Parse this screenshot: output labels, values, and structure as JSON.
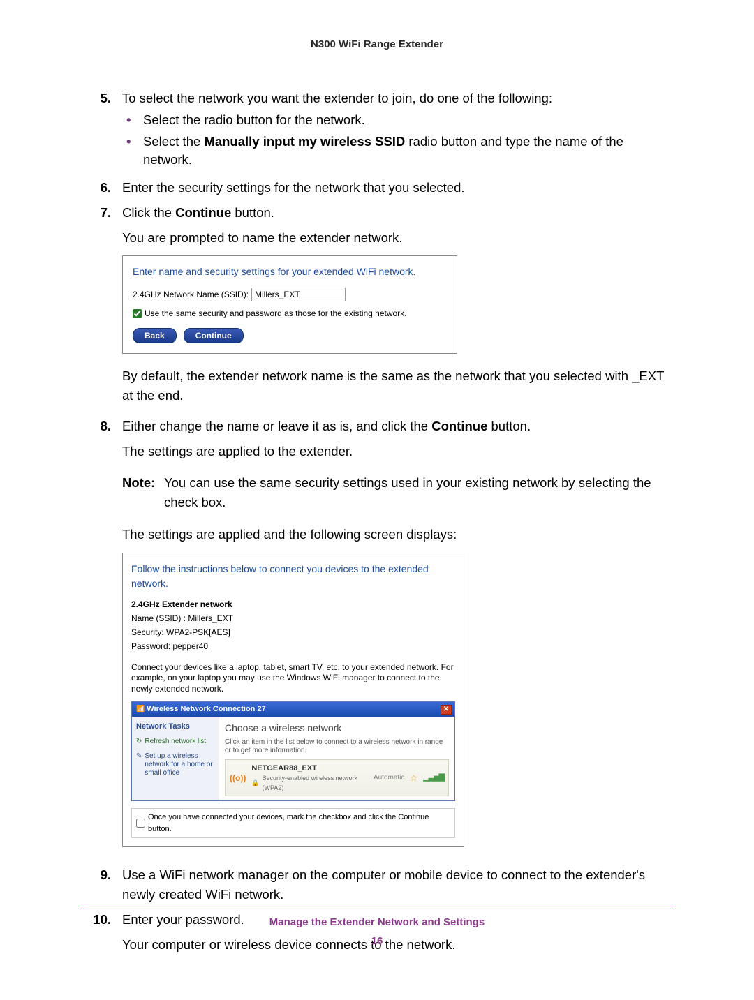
{
  "doc": {
    "header_title": "N300 WiFi Range Extender",
    "footer_section": "Manage the Extender Network and Settings",
    "page_number": "16"
  },
  "colors": {
    "accent_purple": "#8a3a8a",
    "link_blue": "#1a4aa0",
    "xp_bar": "#2a5ac0"
  },
  "steps": {
    "s5": {
      "num": "5.",
      "text": "To select the network you want the extender to join, do one of the following:",
      "b1": "Select the radio button for the network.",
      "b2_a": "Select the ",
      "b2_bold": "Manually input my wireless SSID",
      "b2_b": " radio button and type the name of the network."
    },
    "s6": {
      "num": "6.",
      "text": "Enter the security settings for the network that you selected."
    },
    "s7": {
      "num": "7.",
      "a": "Click the ",
      "bold": "Continue",
      "b": " button.",
      "p2": "You are prompted to name the extender network.",
      "p3": "By default, the extender network name is the same as the network that you selected with _EXT at the end."
    },
    "s8": {
      "num": "8.",
      "a": "Either change the name or leave it as is, and click the ",
      "bold": "Continue",
      "b": " button.",
      "p2": "The settings are applied to the extender.",
      "note_label": "Note:",
      "note_text": "You can use the same security settings used in your existing network by selecting the check box.",
      "p3": "The settings are applied and the following screen displays:"
    },
    "s9": {
      "num": "9.",
      "text": "Use a WiFi network manager on the computer or mobile device to connect to the extender's newly created WiFi network."
    },
    "s10": {
      "num": "10.",
      "text": "Enter your password.",
      "p2": "Your computer or wireless device connects to the network."
    }
  },
  "inset1": {
    "title": "Enter name and security settings for your extended WiFi network.",
    "ssid_label": "2.4GHz Network Name (SSID):",
    "ssid_value": "Millers_EXT",
    "chk_label": "Use the same security and password as those for the existing network.",
    "chk_checked": true,
    "btn_back": "Back",
    "btn_continue": "Continue"
  },
  "inset2": {
    "title": "Follow the instructions below to connect you devices to the extended network.",
    "heading": "2.4GHz Extender network",
    "name_line": "Name (SSID) : Millers_EXT",
    "security_line": "Security: WPA2-PSK[AES]",
    "password_line": "Password: pepper40",
    "desc": "Connect your devices like a laptop, tablet, smart TV, etc. to your extended network. For example, on your laptop you may use the Windows WiFi manager to connect to the newly extended network.",
    "xp_title": "Wireless Network Connection 27",
    "side_heading": "Network Tasks",
    "side_link1": "Refresh network list",
    "side_link2": "Set up a wireless network for a home or small office",
    "main_title": "Choose a wireless network",
    "main_sub": "Click an item in the list below to connect to a wireless network in range or to get more information.",
    "net_name": "NETGEAR88_EXT",
    "net_sec": "Security-enabled wireless network (WPA2)",
    "auto": "Automatic",
    "final_chk": "Once you have connected your devices, mark the checkbox and click the Continue button."
  }
}
